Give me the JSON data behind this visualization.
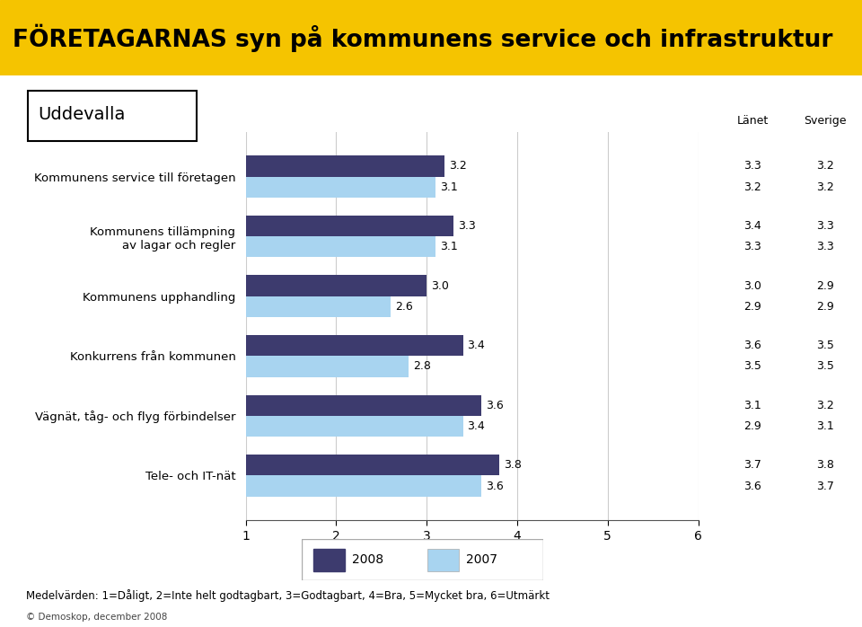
{
  "title": "FÖRETAGARNAS syn på kommunens service och infrastruktur",
  "subtitle": "Uddevalla",
  "categories": [
    "Kommunens service till företagen",
    "Kommunens tillämpning\nav lagar och regler",
    "Kommunens upphandling",
    "Konkurrens från kommunen",
    "Vägnät, tåg- och flyg förbindelser",
    "Tele- och IT-nät"
  ],
  "values_2008": [
    3.2,
    3.3,
    3.0,
    3.4,
    3.6,
    3.8
  ],
  "values_2007": [
    3.1,
    3.1,
    2.6,
    2.8,
    3.4,
    3.6
  ],
  "lanet_2008": [
    3.3,
    3.4,
    3.0,
    3.6,
    3.1,
    3.7
  ],
  "lanet_2007": [
    3.2,
    3.3,
    2.9,
    3.5,
    2.9,
    3.6
  ],
  "sverige_2008": [
    3.2,
    3.3,
    2.9,
    3.5,
    3.2,
    3.8
  ],
  "sverige_2007": [
    3.2,
    3.3,
    2.9,
    3.5,
    3.1,
    3.7
  ],
  "color_2008": "#3d3b6e",
  "color_2007": "#a8d4f0",
  "xlim": [
    1,
    6
  ],
  "xticks": [
    1,
    2,
    3,
    4,
    5,
    6
  ],
  "bar_height": 0.35,
  "title_bg_color": "#f5c400",
  "title_text_color": "#000000",
  "footer_text": "Medelvärden: 1=Dåligt, 2=Inte helt godtagbart, 3=Godtagbart, 4=Bra, 5=Mycket bra, 6=Utmärkt",
  "copyright_text": "© Demoskop, december 2008",
  "lanet_label": "Länet",
  "sverige_label": "Sverige"
}
